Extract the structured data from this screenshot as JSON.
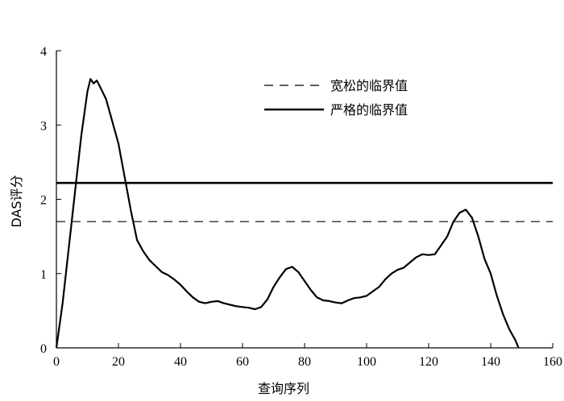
{
  "chart_data": {
    "type": "line",
    "xlabel": "查询序列",
    "ylabel": "DAS评分",
    "xlim": [
      0,
      160
    ],
    "ylim": [
      0,
      4
    ],
    "xticks": [
      0,
      20,
      40,
      60,
      80,
      100,
      120,
      140,
      160
    ],
    "yticks": [
      0,
      1,
      2,
      3,
      4
    ],
    "legend_position": "top-right",
    "series": [
      {
        "style": "solid",
        "values": [
          [
            0,
            0.0
          ],
          [
            2,
            0.6
          ],
          [
            4,
            1.35
          ],
          [
            6,
            2.1
          ],
          [
            8,
            2.85
          ],
          [
            10,
            3.45
          ],
          [
            11,
            3.62
          ],
          [
            12,
            3.56
          ],
          [
            13,
            3.6
          ],
          [
            14,
            3.52
          ],
          [
            16,
            3.35
          ],
          [
            18,
            3.05
          ],
          [
            20,
            2.75
          ],
          [
            22,
            2.3
          ],
          [
            24,
            1.85
          ],
          [
            26,
            1.45
          ],
          [
            28,
            1.3
          ],
          [
            30,
            1.18
          ],
          [
            32,
            1.1
          ],
          [
            34,
            1.02
          ],
          [
            36,
            0.98
          ],
          [
            38,
            0.92
          ],
          [
            40,
            0.85
          ],
          [
            42,
            0.76
          ],
          [
            44,
            0.68
          ],
          [
            46,
            0.62
          ],
          [
            48,
            0.6
          ],
          [
            50,
            0.62
          ],
          [
            52,
            0.63
          ],
          [
            54,
            0.6
          ],
          [
            56,
            0.58
          ],
          [
            58,
            0.56
          ],
          [
            60,
            0.55
          ],
          [
            62,
            0.54
          ],
          [
            64,
            0.52
          ],
          [
            66,
            0.55
          ],
          [
            68,
            0.65
          ],
          [
            70,
            0.82
          ],
          [
            72,
            0.95
          ],
          [
            74,
            1.06
          ],
          [
            76,
            1.09
          ],
          [
            78,
            1.02
          ],
          [
            80,
            0.9
          ],
          [
            82,
            0.78
          ],
          [
            84,
            0.68
          ],
          [
            86,
            0.64
          ],
          [
            88,
            0.63
          ],
          [
            90,
            0.61
          ],
          [
            92,
            0.6
          ],
          [
            94,
            0.64
          ],
          [
            96,
            0.67
          ],
          [
            98,
            0.68
          ],
          [
            100,
            0.7
          ],
          [
            102,
            0.76
          ],
          [
            104,
            0.82
          ],
          [
            106,
            0.92
          ],
          [
            108,
            1.0
          ],
          [
            110,
            1.05
          ],
          [
            112,
            1.08
          ],
          [
            114,
            1.15
          ],
          [
            116,
            1.22
          ],
          [
            118,
            1.26
          ],
          [
            120,
            1.25
          ],
          [
            122,
            1.26
          ],
          [
            124,
            1.38
          ],
          [
            126,
            1.5
          ],
          [
            128,
            1.7
          ],
          [
            130,
            1.82
          ],
          [
            132,
            1.86
          ],
          [
            134,
            1.75
          ],
          [
            136,
            1.5
          ],
          [
            138,
            1.2
          ],
          [
            140,
            1.0
          ],
          [
            142,
            0.7
          ],
          [
            144,
            0.45
          ],
          [
            146,
            0.25
          ],
          [
            148,
            0.1
          ],
          [
            149,
            0.0
          ]
        ]
      },
      {
        "name": "宽松的临界值",
        "style": "dashed",
        "y": 1.7
      },
      {
        "name": "严格的临界值",
        "style": "solid-thick",
        "y": 2.22
      }
    ]
  }
}
